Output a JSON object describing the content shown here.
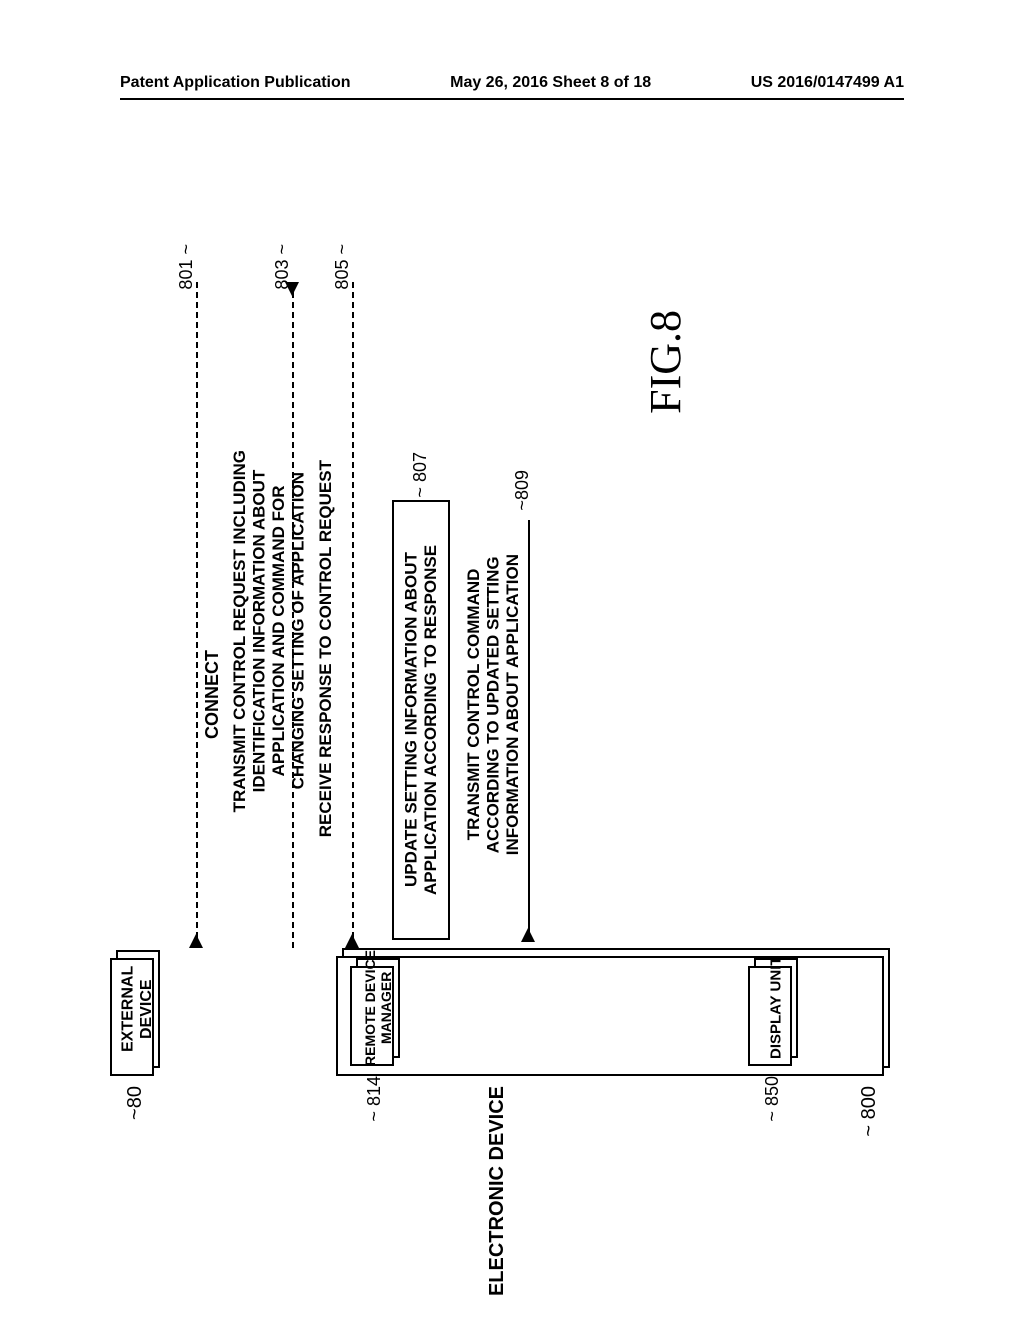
{
  "header": {
    "left": "Patent Application Publication",
    "center": "May 26, 2016  Sheet 8 of 18",
    "right": "US 2016/0147499 A1"
  },
  "diagram": {
    "external_device": {
      "label": "EXTERNAL\nDEVICE",
      "ref": "80"
    },
    "electronic_device": {
      "label": "ELECTRONIC DEVICE",
      "ref": "800",
      "remote_device_manager": {
        "label": "REMOTE DEVICE\nMANAGER",
        "ref": "814"
      },
      "display_unit": {
        "label": "DISPLAY UNIT",
        "ref": "850"
      }
    },
    "messages": {
      "m801": {
        "ref": "801",
        "text": "CONNECT",
        "style": "dashed",
        "dir": "up"
      },
      "m803": {
        "ref": "803",
        "text": "TRANSMIT CONTROL REQUEST INCLUDING\nIDENTIFICATION INFORMATION ABOUT\nAPPLICATION AND COMMAND FOR\nCHANGING SETTING OF APPLICATION",
        "style": "dashed",
        "dir": "down"
      },
      "m805": {
        "ref": "805",
        "text": "RECEIVE RESPONSE TO CONTROL REQUEST",
        "style": "dashed",
        "dir": "up"
      },
      "m807": {
        "ref": "807",
        "text": "UPDATE SETTING INFORMATION ABOUT\nAPPLICATION ACCORDING TO RESPONSE",
        "style": "solid",
        "self": true
      },
      "m809": {
        "ref": "809",
        "text": "TRANSMIT CONTROL COMMAND\nACCORDING TO UPDATED SETTING\nINFORMATION ABOUT APPLICATION",
        "style": "solid",
        "dir": "up"
      }
    },
    "figure_label": "FIG.8"
  }
}
